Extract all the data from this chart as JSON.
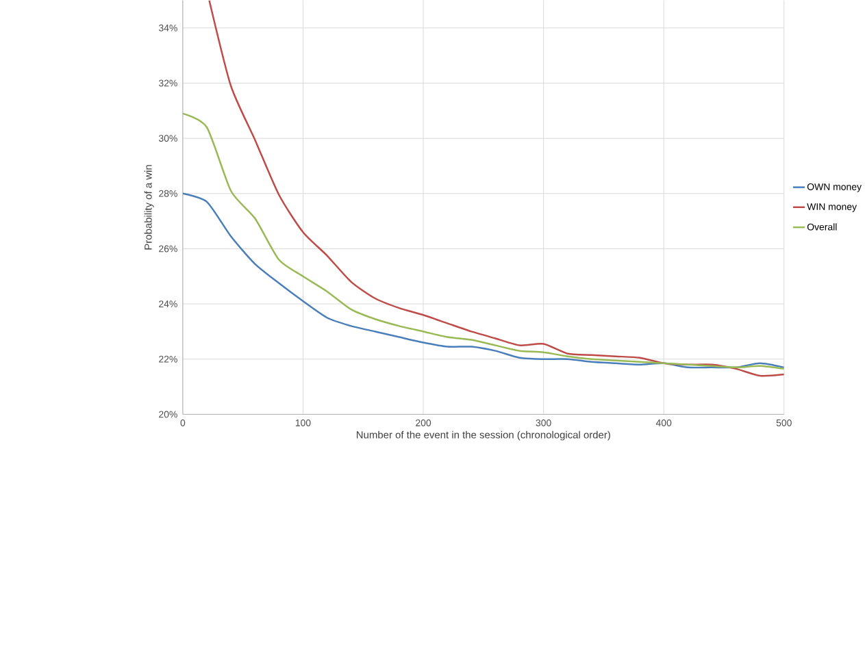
{
  "chart_data": {
    "type": "line",
    "xlabel": "Number of the event in the session (chronological order)",
    "ylabel": "Probability of a win",
    "x": [
      0,
      20,
      40,
      60,
      80,
      100,
      120,
      140,
      160,
      180,
      200,
      220,
      240,
      260,
      280,
      300,
      320,
      340,
      360,
      380,
      400,
      420,
      440,
      460,
      480,
      500
    ],
    "series": [
      {
        "name": "OWN money",
        "color": "#4a7ebb",
        "values": [
          28.0,
          27.7,
          26.45,
          25.45,
          24.75,
          24.1,
          23.5,
          23.2,
          23.0,
          22.8,
          22.6,
          22.45,
          22.45,
          22.3,
          22.05,
          22.0,
          22.0,
          21.9,
          21.85,
          21.8,
          21.85,
          21.7,
          21.7,
          21.7,
          21.85,
          21.7
        ]
      },
      {
        "name": "WIN money",
        "color": "#be4b48",
        "x": [
          22,
          40,
          60,
          80,
          100,
          120,
          140,
          160,
          180,
          200,
          220,
          240,
          260,
          280,
          300,
          320,
          340,
          360,
          380,
          400,
          420,
          440,
          460,
          480,
          500
        ],
        "values": [
          35.0,
          31.9,
          29.95,
          27.95,
          26.6,
          25.75,
          24.8,
          24.2,
          23.85,
          23.6,
          23.3,
          23.0,
          22.75,
          22.5,
          22.55,
          22.2,
          22.15,
          22.1,
          22.05,
          21.85,
          21.8,
          21.8,
          21.65,
          21.4,
          21.45
        ]
      },
      {
        "name": "Overall",
        "color": "#98b954",
        "values": [
          30.9,
          30.4,
          28.1,
          27.1,
          25.6,
          25.0,
          24.45,
          23.8,
          23.45,
          23.2,
          23.0,
          22.8,
          22.7,
          22.5,
          22.3,
          22.25,
          22.1,
          22.0,
          21.95,
          21.9,
          21.85,
          21.8,
          21.75,
          21.7,
          21.75,
          21.65
        ]
      }
    ],
    "xlim": [
      0,
      500
    ],
    "ylim": [
      20,
      35
    ],
    "xticks": [
      0,
      100,
      200,
      300,
      400,
      500
    ],
    "yticks": [
      {
        "value": 20,
        "label": "20%"
      },
      {
        "value": 22,
        "label": "22%"
      },
      {
        "value": 24,
        "label": "24%"
      },
      {
        "value": 26,
        "label": "26%"
      },
      {
        "value": 28,
        "label": "28%"
      },
      {
        "value": 30,
        "label": "30%"
      },
      {
        "value": 32,
        "label": "32%"
      },
      {
        "value": 34,
        "label": "34%"
      }
    ],
    "grid": true,
    "legend": "right"
  }
}
